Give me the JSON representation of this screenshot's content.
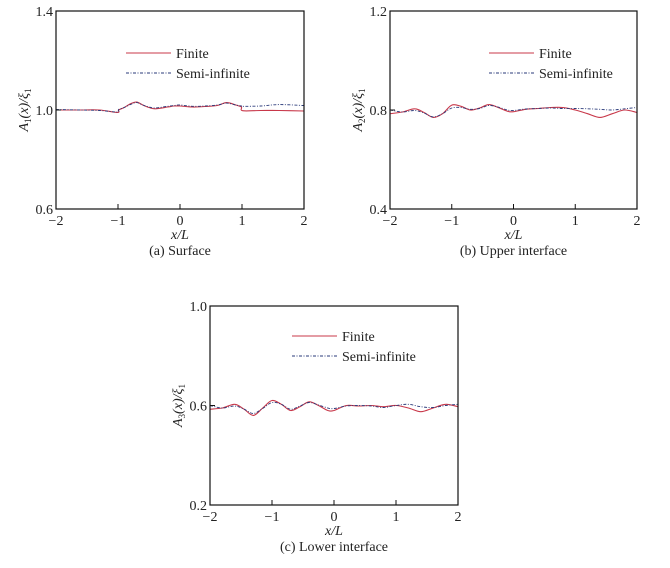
{
  "colors": {
    "finite": "#c8384a",
    "semi_infinite": "#2a3a7a",
    "axis": "#111111"
  },
  "legend": {
    "finite": "Finite",
    "semi_infinite": "Semi-infinite"
  },
  "chart_data": [
    {
      "type": "line",
      "panel": "a",
      "caption": "(a) Surface",
      "xlabel": "x/L",
      "ylabel": "A1(x)/ξ1",
      "ylabel_parts": {
        "main": "A",
        "sub": "1",
        "arg": "(x)/ξ",
        "sub2": "1"
      },
      "xlim": [
        -2,
        2
      ],
      "ylim": [
        0.6,
        1.4
      ],
      "xticks": [
        "−2",
        "−1",
        "0",
        "1",
        "2"
      ],
      "yticks": [
        "0.6",
        "1.0",
        "1.4"
      ],
      "yticks_values": [
        0.6,
        1.0,
        1.4
      ],
      "grid": false,
      "legend_position": "upper center",
      "x": [
        -2,
        -1.6,
        -1.3,
        -1.01,
        -0.99,
        -0.9,
        -0.8,
        -0.7,
        -0.6,
        -0.5,
        -0.4,
        -0.2,
        -0.1,
        0,
        0.2,
        0.4,
        0.6,
        0.75,
        0.9,
        0.99,
        1.01,
        1.3,
        1.6,
        2
      ],
      "series": [
        {
          "name": "Finite",
          "values": [
            1.0,
            1.0,
            1.0,
            0.99,
            1.0,
            1.01,
            1.025,
            1.032,
            1.02,
            1.01,
            1.005,
            1.012,
            1.016,
            1.016,
            1.012,
            1.014,
            1.018,
            1.03,
            1.02,
            1.012,
            0.997,
            0.998,
            0.998,
            0.996
          ]
        },
        {
          "name": "Semi-infinite",
          "values": [
            1.002,
            1.0,
            0.998,
            0.992,
            1.002,
            1.01,
            1.022,
            1.03,
            1.02,
            1.012,
            1.008,
            1.015,
            1.018,
            1.02,
            1.015,
            1.016,
            1.02,
            1.028,
            1.02,
            1.016,
            1.015,
            1.016,
            1.022,
            1.018
          ]
        }
      ]
    },
    {
      "type": "line",
      "panel": "b",
      "caption": "(b) Upper interface",
      "xlabel": "x/L",
      "ylabel": "A2(x)/ξ1",
      "ylabel_parts": {
        "main": "A",
        "sub": "2",
        "arg": "(x)/ξ",
        "sub2": "1"
      },
      "xlim": [
        -2,
        2
      ],
      "ylim": [
        0.4,
        1.2
      ],
      "xticks": [
        "−2",
        "−1",
        "0",
        "1",
        "2"
      ],
      "yticks": [
        "0.4",
        "0.8",
        "1.2"
      ],
      "yticks_values": [
        0.4,
        0.8,
        1.2
      ],
      "grid": false,
      "legend_position": "upper right",
      "x": [
        -2,
        -1.8,
        -1.6,
        -1.45,
        -1.3,
        -1.15,
        -1.0,
        -0.85,
        -0.7,
        -0.55,
        -0.4,
        -0.25,
        -0.1,
        0,
        0.2,
        0.4,
        0.6,
        0.8,
        1.0,
        1.2,
        1.4,
        1.6,
        1.8,
        2
      ],
      "series": [
        {
          "name": "Finite",
          "values": [
            0.785,
            0.792,
            0.805,
            0.79,
            0.77,
            0.785,
            0.82,
            0.815,
            0.8,
            0.808,
            0.822,
            0.81,
            0.795,
            0.793,
            0.803,
            0.806,
            0.81,
            0.81,
            0.8,
            0.785,
            0.77,
            0.785,
            0.8,
            0.79
          ]
        },
        {
          "name": "Semi-infinite",
          "values": [
            0.8,
            0.792,
            0.798,
            0.788,
            0.772,
            0.785,
            0.808,
            0.81,
            0.803,
            0.806,
            0.818,
            0.812,
            0.8,
            0.798,
            0.804,
            0.806,
            0.808,
            0.806,
            0.806,
            0.805,
            0.803,
            0.8,
            0.805,
            0.81
          ]
        }
      ]
    },
    {
      "type": "line",
      "panel": "c",
      "caption": "(c) Lower interface",
      "xlabel": "x/L",
      "ylabel": "A3(x)/ξ1",
      "ylabel_parts": {
        "main": "A",
        "sub": "3",
        "arg": "(x)/ξ",
        "sub2": "1"
      },
      "xlim": [
        -2,
        2
      ],
      "ylim": [
        0.2,
        1.0
      ],
      "xticks": [
        "−2",
        "−1",
        "0",
        "1",
        "2"
      ],
      "yticks": [
        "0.2",
        "0.6",
        "1.0"
      ],
      "yticks_values": [
        0.2,
        0.6,
        1.0
      ],
      "grid": false,
      "legend_position": "upper right",
      "x": [
        -2,
        -1.8,
        -1.6,
        -1.45,
        -1.3,
        -1.15,
        -1.0,
        -0.85,
        -0.7,
        -0.55,
        -0.4,
        -0.25,
        -0.1,
        0,
        0.2,
        0.4,
        0.6,
        0.8,
        1.0,
        1.2,
        1.4,
        1.6,
        1.8,
        2
      ],
      "series": [
        {
          "name": "Finite",
          "values": [
            0.585,
            0.59,
            0.605,
            0.585,
            0.56,
            0.59,
            0.62,
            0.605,
            0.58,
            0.595,
            0.615,
            0.6,
            0.58,
            0.58,
            0.6,
            0.598,
            0.6,
            0.595,
            0.6,
            0.59,
            0.575,
            0.59,
            0.605,
            0.595
          ]
        },
        {
          "name": "Semi-infinite",
          "values": [
            0.6,
            0.59,
            0.598,
            0.585,
            0.568,
            0.588,
            0.612,
            0.605,
            0.585,
            0.598,
            0.612,
            0.602,
            0.59,
            0.588,
            0.598,
            0.6,
            0.598,
            0.592,
            0.6,
            0.605,
            0.595,
            0.592,
            0.6,
            0.605
          ]
        }
      ]
    }
  ]
}
